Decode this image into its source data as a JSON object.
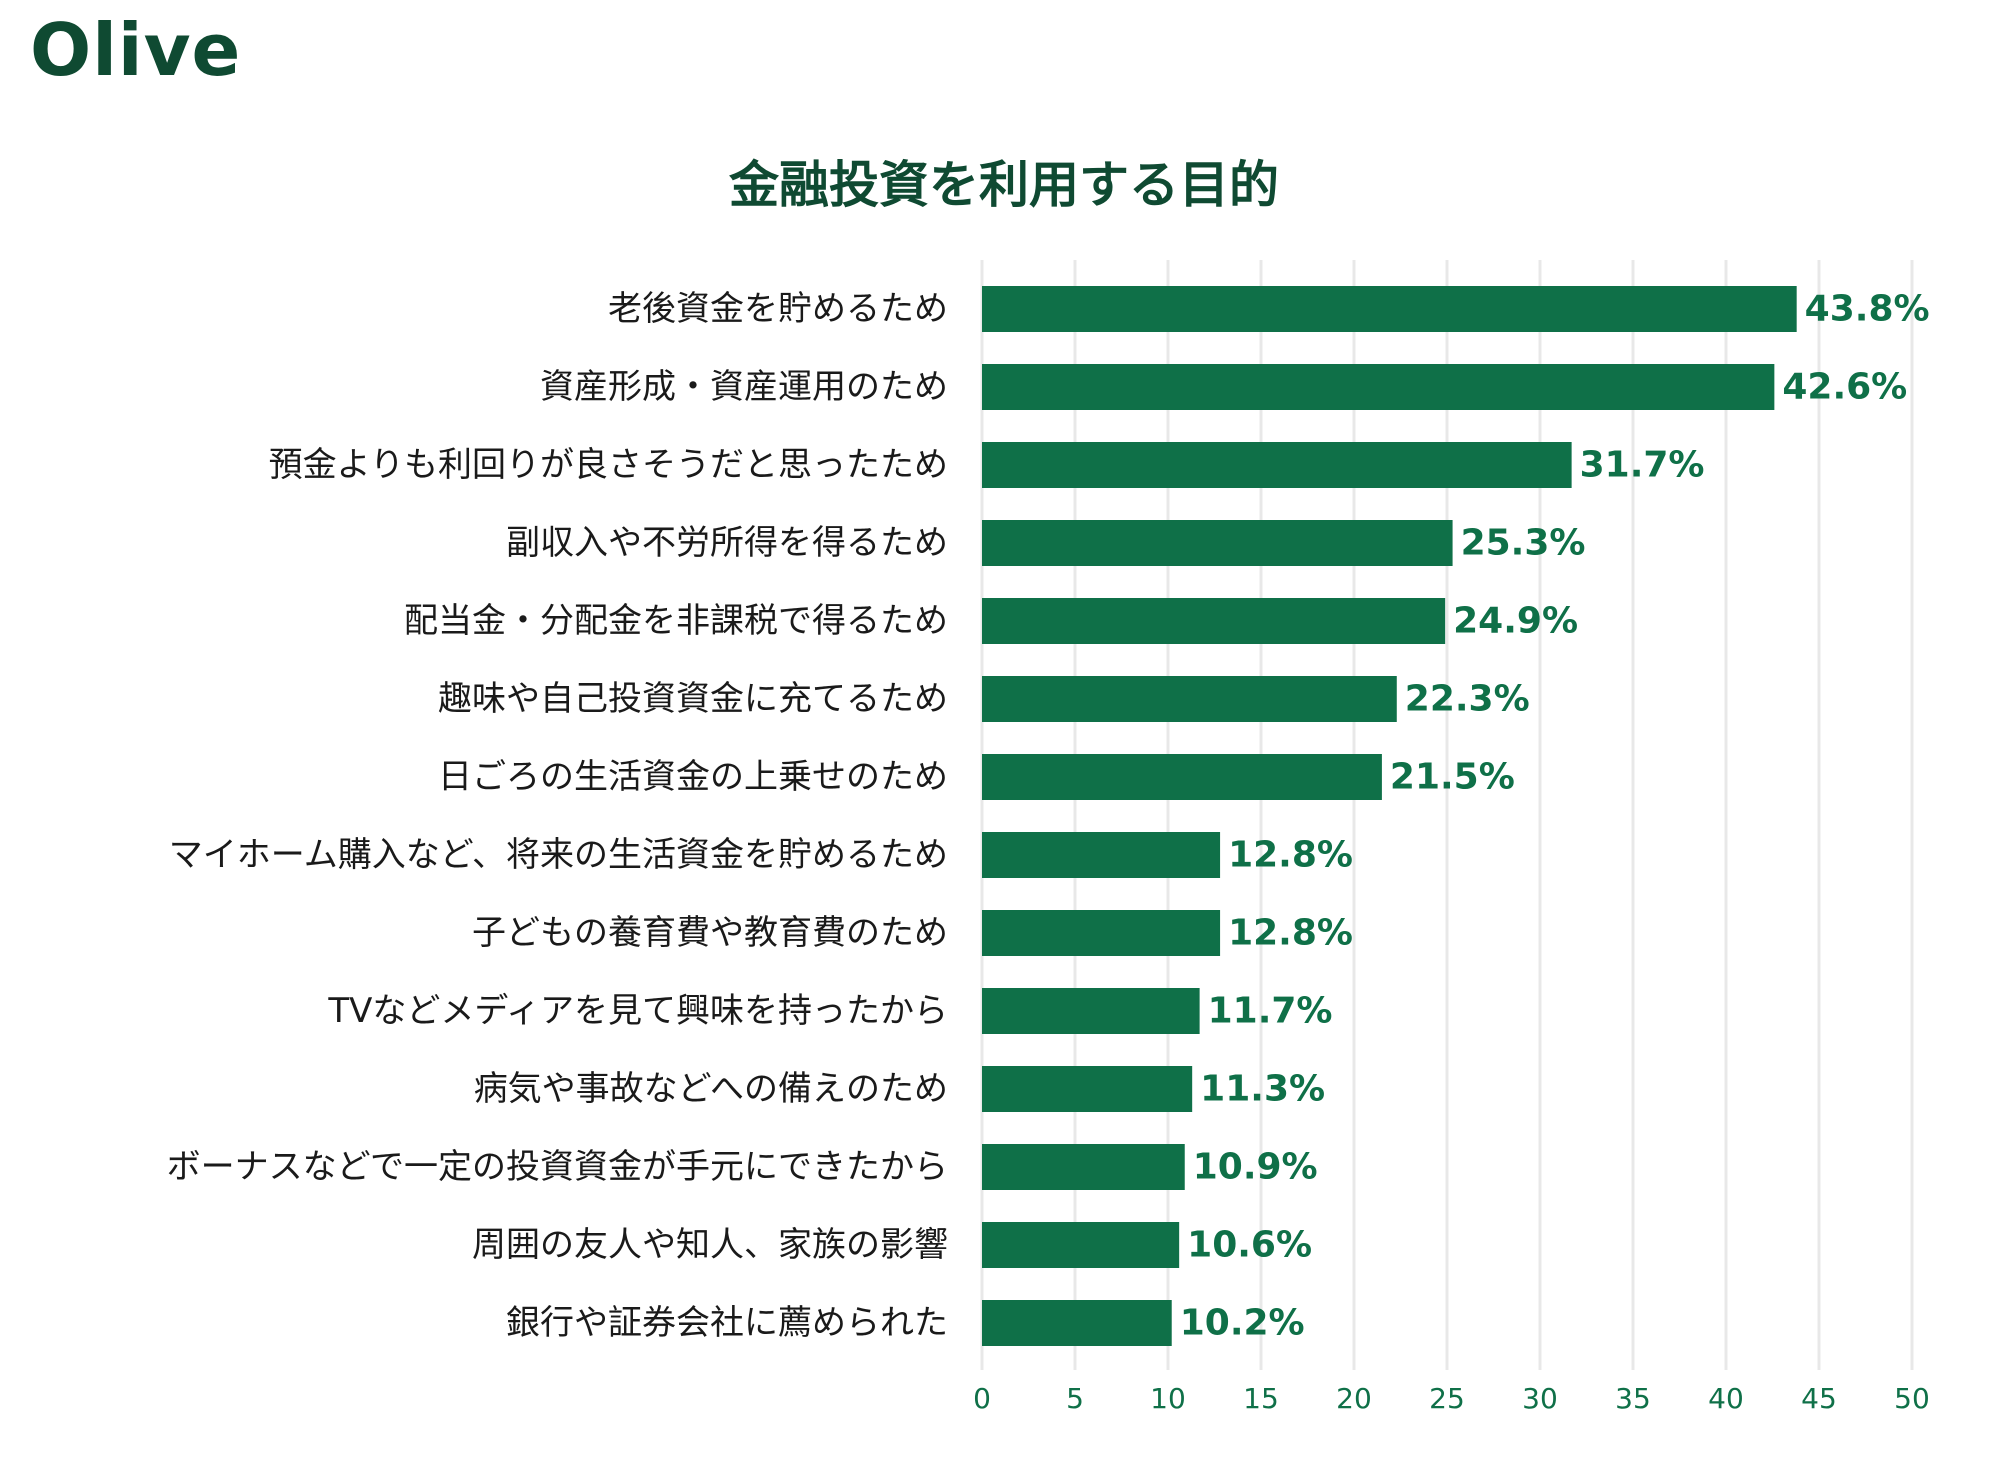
{
  "brand": {
    "logo_text": "Olive",
    "accent": "#0f7048",
    "dark": "#0f4a32",
    "grid": "#e8e8e8"
  },
  "chart_data": {
    "type": "bar",
    "orientation": "horizontal",
    "title": "金融投資を利用する目的",
    "categories": [
      "老後資金を貯めるため",
      "資産形成・資産運用のため",
      "預金よりも利回りが良さそうだと思ったため",
      "副収入や不労所得を得るため",
      "配当金・分配金を非課税で得るため",
      "趣味や自己投資資金に充てるため",
      "日ごろの生活資金の上乗せのため",
      "マイホーム購入など、将来の生活資金を貯めるため",
      "子どもの養育費や教育費のため",
      "TVなどメディアを見て興味を持ったから",
      "病気や事故などへの備えのため",
      "ボーナスなどで一定の投資資金が手元にできたから",
      "周囲の友人や知人、家族の影響",
      "銀行や証券会社に薦められた"
    ],
    "values": [
      43.8,
      42.6,
      31.7,
      25.3,
      24.9,
      22.3,
      21.5,
      12.8,
      12.8,
      11.7,
      11.3,
      10.9,
      10.6,
      10.2
    ],
    "value_labels": [
      "43.8%",
      "42.6%",
      "31.7%",
      "25.3%",
      "24.9%",
      "22.3%",
      "21.5%",
      "12.8%",
      "12.8%",
      "11.7%",
      "11.3%",
      "10.9%",
      "10.6%",
      "10.2%"
    ],
    "xlim": [
      0,
      50
    ],
    "xticks": [
      0,
      5,
      10,
      15,
      20,
      25,
      30,
      35,
      40,
      45,
      50
    ],
    "grid": true,
    "bar_color": "#0f7048"
  }
}
